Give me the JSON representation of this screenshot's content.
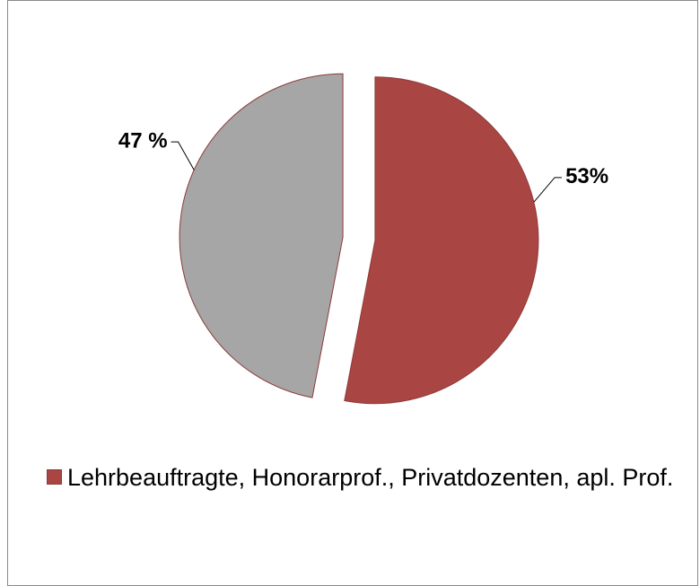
{
  "chart_data": {
    "type": "pie",
    "categories": [
      "Lehrbeauftragte, Honorarprof., Privatdozenten, apl. Prof.",
      null
    ],
    "values": [
      53,
      47
    ],
    "value_labels": [
      "53%",
      "47 %"
    ],
    "colors": [
      "#a94644",
      "#a6a6a6"
    ],
    "legend": "bottom"
  }
}
